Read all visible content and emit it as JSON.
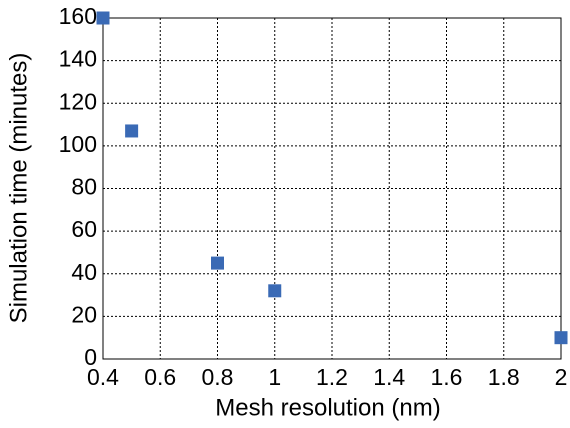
{
  "chart_data": {
    "type": "scatter",
    "x_label": "Mesh resolution (nm)",
    "y_label": "Simulation time (minutes)",
    "x": [
      0.4,
      0.5,
      0.8,
      1,
      2
    ],
    "values": [
      160,
      107,
      45,
      32,
      10
    ],
    "color": "#3a6ab5",
    "xlim": [
      0.4,
      2
    ],
    "xticks": [
      0.4,
      0.6,
      0.8,
      1,
      1.2,
      1.4,
      1.6,
      1.8,
      2
    ],
    "ylim": [
      0,
      160
    ],
    "yticks": [
      0,
      20,
      40,
      60,
      80,
      100,
      120,
      140,
      160
    ],
    "grid": true
  }
}
